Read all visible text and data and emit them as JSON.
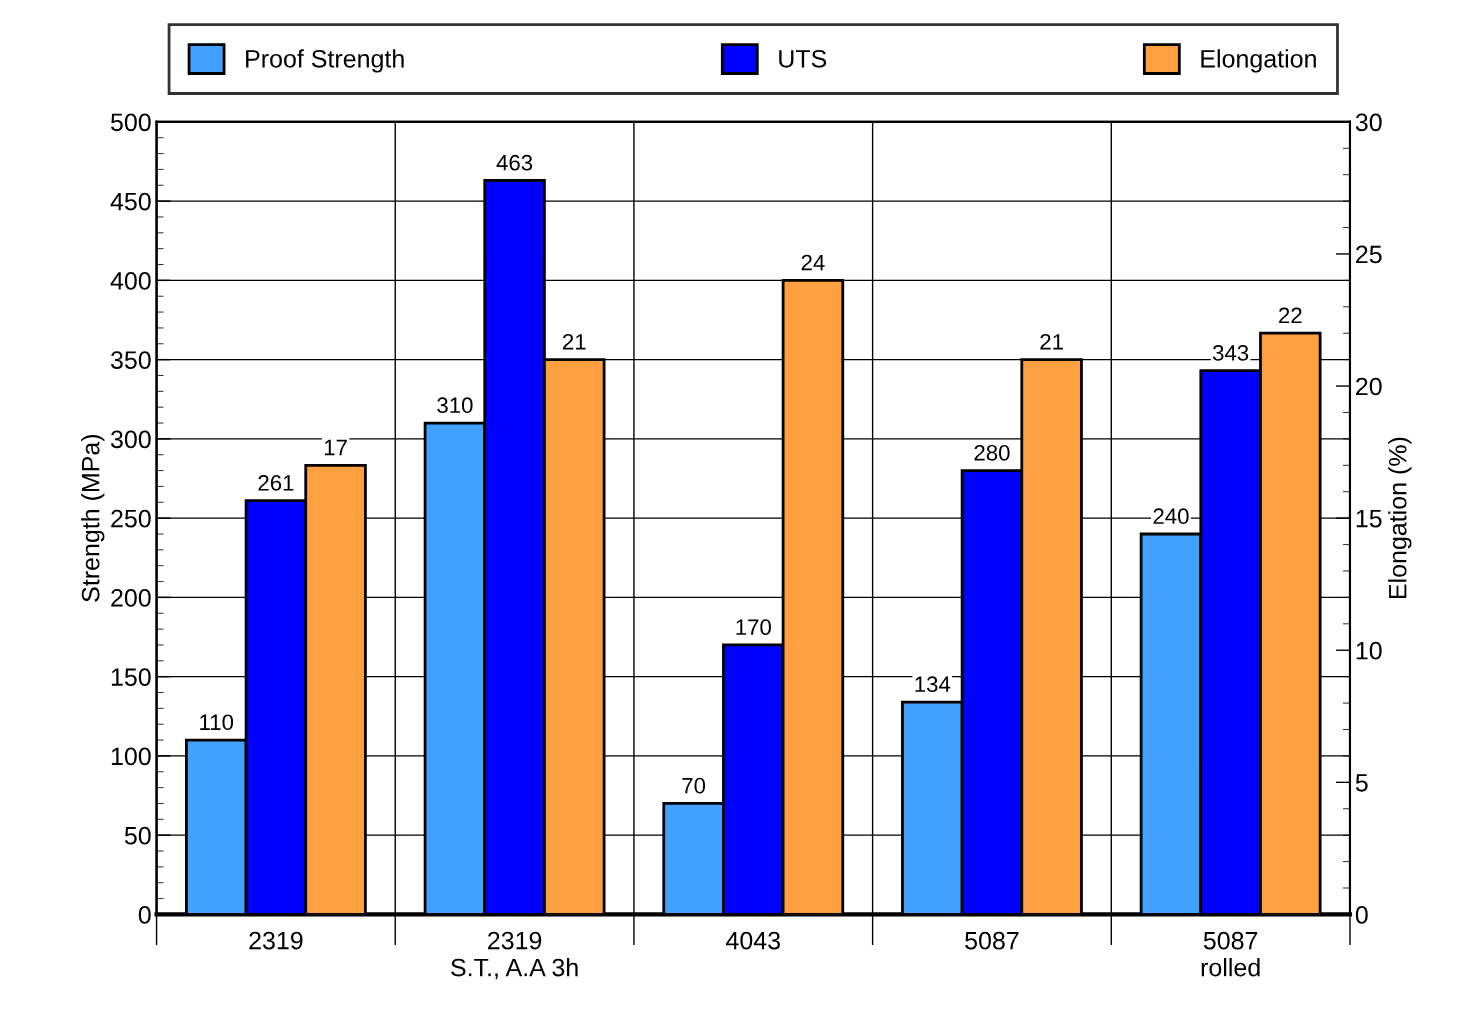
{
  "chart_data": {
    "type": "bar",
    "ylabel": "Strength (MPa)",
    "y2label": "Elongation (%)",
    "categories": [
      "2319",
      "2319\nS.T., A.A 3h",
      "4043",
      "5087",
      "5087\nrolled"
    ],
    "series": [
      {
        "name": "Proof Strength",
        "color": "#42a0ff",
        "values": [
          110,
          310,
          70,
          134,
          240
        ]
      },
      {
        "name": "UTS",
        "color": "#0000ff",
        "values": [
          261,
          463,
          170,
          280,
          343
        ]
      },
      {
        "name": "Elongation",
        "color": "#ffa040",
        "values": [
          17,
          21,
          24,
          21,
          22
        ],
        "axis": "y2"
      }
    ],
    "ylim": [
      0,
      500
    ],
    "yticks": [
      0,
      50,
      100,
      150,
      200,
      250,
      300,
      350,
      400,
      450,
      500
    ],
    "y2lim": [
      0,
      30
    ],
    "y2ticks": [
      0,
      5,
      10,
      15,
      20,
      25,
      30
    ],
    "data_labels": true,
    "grid": true,
    "legend": "top"
  }
}
